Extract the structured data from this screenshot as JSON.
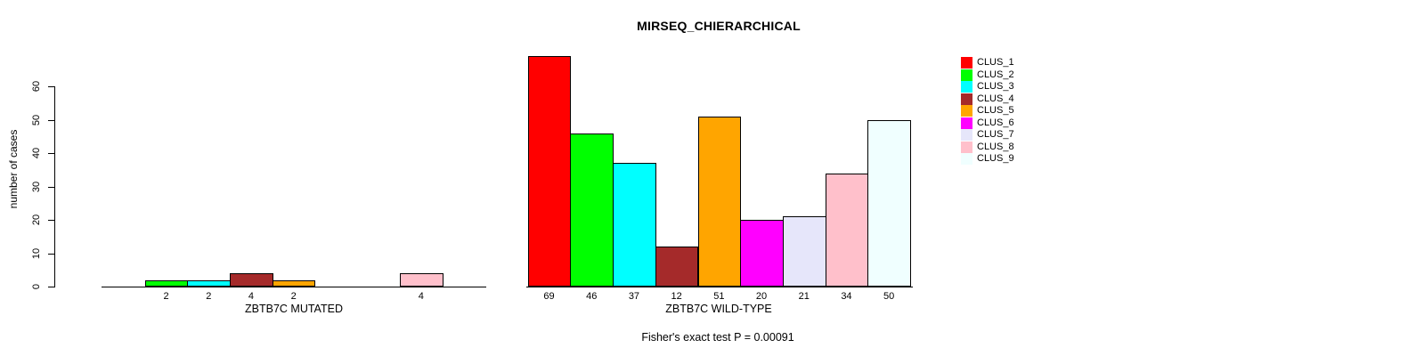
{
  "title": "MIRSEQ_CHIERARCHICAL",
  "y_axis": {
    "label": "number of cases",
    "ticks": [
      "0",
      "10",
      "20",
      "30",
      "40",
      "50",
      "60"
    ]
  },
  "footer": {
    "caption": "Fisher's exact test P = 0.00091"
  },
  "legend": {
    "entries": [
      {
        "label": "CLUS_1",
        "color": "#FF0000"
      },
      {
        "label": "CLUS_2",
        "color": "#00FF00"
      },
      {
        "label": "CLUS_3",
        "color": "#00FFFF"
      },
      {
        "label": "CLUS_4",
        "color": "#A52A2A"
      },
      {
        "label": "CLUS_5",
        "color": "#FFA500"
      },
      {
        "label": "CLUS_6",
        "color": "#FF00FF"
      },
      {
        "label": "CLUS_7",
        "color": "#E6E6FA"
      },
      {
        "label": "CLUS_8",
        "color": "#FFC0CB"
      },
      {
        "label": "CLUS_9",
        "color": "#F0FFFF"
      }
    ]
  },
  "chart_data": {
    "type": "bar",
    "title": "MIRSEQ_CHIERARCHICAL",
    "ylabel": "number of cases",
    "ylim": [
      0,
      60
    ],
    "yticks": [
      0,
      10,
      20,
      30,
      40,
      50,
      60
    ],
    "grid": false,
    "legend_position": "right",
    "categories": [
      "CLUS_1",
      "CLUS_2",
      "CLUS_3",
      "CLUS_4",
      "CLUS_5",
      "CLUS_6",
      "CLUS_7",
      "CLUS_8",
      "CLUS_9"
    ],
    "colors": [
      "#FF0000",
      "#00FF00",
      "#00FFFF",
      "#A52A2A",
      "#FFA500",
      "#FF00FF",
      "#E6E6FA",
      "#FFC0CB",
      "#F0FFFF"
    ],
    "groups": [
      {
        "label": "ZBTB7C MUTATED",
        "values": [
          0,
          2,
          2,
          4,
          2,
          0,
          0,
          4,
          0
        ]
      },
      {
        "label": "ZBTB7C WILD-TYPE",
        "values": [
          69,
          46,
          37,
          12,
          51,
          20,
          21,
          34,
          50
        ]
      }
    ],
    "annotation": "Fisher's exact test P = 0.00091"
  }
}
